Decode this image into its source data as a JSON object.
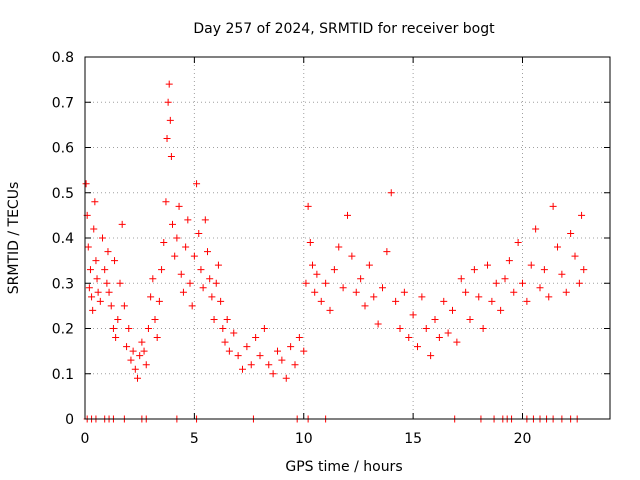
{
  "chart_data": {
    "type": "scatter",
    "title": "Day 257 of 2024, SRMTID for receiver bogt",
    "xlabel": "GPS time / hours",
    "ylabel": "SRMTID / TECUs",
    "xlim": [
      0,
      24
    ],
    "ylim": [
      0,
      0.8
    ],
    "x_ticks": [
      0,
      5,
      10,
      15,
      20
    ],
    "x_tick_labels": [
      "0",
      "5",
      "10",
      "15",
      "20"
    ],
    "y_ticks": [
      0,
      0.1,
      0.2,
      0.3,
      0.4,
      0.5,
      0.6,
      0.7,
      0.8
    ],
    "y_tick_labels": [
      "0",
      "0.1",
      "0.2",
      "0.3",
      "0.4",
      "0.5",
      "0.6",
      "0.7",
      "0.8"
    ],
    "grid": true,
    "marker": "plus",
    "series": [
      {
        "name": "SRMTID",
        "color": "#ff0000",
        "points": [
          [
            0.05,
            0.52
          ],
          [
            0.1,
            0.45
          ],
          [
            0.15,
            0.38
          ],
          [
            0.2,
            0.29
          ],
          [
            0.25,
            0.33
          ],
          [
            0.3,
            0.27
          ],
          [
            0.35,
            0.24
          ],
          [
            0.4,
            0.42
          ],
          [
            0.45,
            0.48
          ],
          [
            0.5,
            0.35
          ],
          [
            0.55,
            0.31
          ],
          [
            0.6,
            0.28
          ],
          [
            0.7,
            0.26
          ],
          [
            0.8,
            0.4
          ],
          [
            0.9,
            0.33
          ],
          [
            1.0,
            0.3
          ],
          [
            1.05,
            0.37
          ],
          [
            1.1,
            0.28
          ],
          [
            1.2,
            0.25
          ],
          [
            1.3,
            0.2
          ],
          [
            1.35,
            0.35
          ],
          [
            1.4,
            0.18
          ],
          [
            1.5,
            0.22
          ],
          [
            1.6,
            0.3
          ],
          [
            1.7,
            0.43
          ],
          [
            1.8,
            0.25
          ],
          [
            1.9,
            0.16
          ],
          [
            2.0,
            0.2
          ],
          [
            2.1,
            0.13
          ],
          [
            2.2,
            0.15
          ],
          [
            2.3,
            0.11
          ],
          [
            2.4,
            0.09
          ],
          [
            2.5,
            0.14
          ],
          [
            2.6,
            0.17
          ],
          [
            2.7,
            0.15
          ],
          [
            2.8,
            0.12
          ],
          [
            2.9,
            0.2
          ],
          [
            3.0,
            0.27
          ],
          [
            3.1,
            0.31
          ],
          [
            3.2,
            0.22
          ],
          [
            3.3,
            0.18
          ],
          [
            3.4,
            0.26
          ],
          [
            3.5,
            0.33
          ],
          [
            3.6,
            0.39
          ],
          [
            3.7,
            0.48
          ],
          [
            3.75,
            0.62
          ],
          [
            3.8,
            0.7
          ],
          [
            3.85,
            0.74
          ],
          [
            3.9,
            0.66
          ],
          [
            3.95,
            0.58
          ],
          [
            4.0,
            0.43
          ],
          [
            4.1,
            0.36
          ],
          [
            4.2,
            0.4
          ],
          [
            4.3,
            0.47
          ],
          [
            4.4,
            0.32
          ],
          [
            4.5,
            0.28
          ],
          [
            4.6,
            0.38
          ],
          [
            4.7,
            0.44
          ],
          [
            4.8,
            0.3
          ],
          [
            4.9,
            0.25
          ],
          [
            5.0,
            0.36
          ],
          [
            5.1,
            0.52
          ],
          [
            5.2,
            0.41
          ],
          [
            5.3,
            0.33
          ],
          [
            5.4,
            0.29
          ],
          [
            5.5,
            0.44
          ],
          [
            5.6,
            0.37
          ],
          [
            5.7,
            0.31
          ],
          [
            5.8,
            0.27
          ],
          [
            5.9,
            0.22
          ],
          [
            6.0,
            0.3
          ],
          [
            6.1,
            0.34
          ],
          [
            6.2,
            0.26
          ],
          [
            6.3,
            0.2
          ],
          [
            6.4,
            0.17
          ],
          [
            6.5,
            0.22
          ],
          [
            6.6,
            0.15
          ],
          [
            6.8,
            0.19
          ],
          [
            7.0,
            0.14
          ],
          [
            7.2,
            0.11
          ],
          [
            7.4,
            0.16
          ],
          [
            7.6,
            0.12
          ],
          [
            7.8,
            0.18
          ],
          [
            8.0,
            0.14
          ],
          [
            8.2,
            0.2
          ],
          [
            8.4,
            0.12
          ],
          [
            8.6,
            0.1
          ],
          [
            8.8,
            0.15
          ],
          [
            9.0,
            0.13
          ],
          [
            9.2,
            0.09
          ],
          [
            9.4,
            0.16
          ],
          [
            9.6,
            0.12
          ],
          [
            9.8,
            0.18
          ],
          [
            10.0,
            0.15
          ],
          [
            10.1,
            0.3
          ],
          [
            10.2,
            0.47
          ],
          [
            10.3,
            0.39
          ],
          [
            10.4,
            0.34
          ],
          [
            10.5,
            0.28
          ],
          [
            10.6,
            0.32
          ],
          [
            10.8,
            0.26
          ],
          [
            11.0,
            0.3
          ],
          [
            11.2,
            0.24
          ],
          [
            11.4,
            0.33
          ],
          [
            11.6,
            0.38
          ],
          [
            11.8,
            0.29
          ],
          [
            12.0,
            0.45
          ],
          [
            12.2,
            0.36
          ],
          [
            12.4,
            0.28
          ],
          [
            12.6,
            0.31
          ],
          [
            12.8,
            0.25
          ],
          [
            13.0,
            0.34
          ],
          [
            13.2,
            0.27
          ],
          [
            13.4,
            0.21
          ],
          [
            13.6,
            0.29
          ],
          [
            13.8,
            0.37
          ],
          [
            14.0,
            0.5
          ],
          [
            14.2,
            0.26
          ],
          [
            14.4,
            0.2
          ],
          [
            14.6,
            0.28
          ],
          [
            14.8,
            0.18
          ],
          [
            15.0,
            0.23
          ],
          [
            15.2,
            0.16
          ],
          [
            15.4,
            0.27
          ],
          [
            15.6,
            0.2
          ],
          [
            15.8,
            0.14
          ],
          [
            16.0,
            0.22
          ],
          [
            16.2,
            0.18
          ],
          [
            16.4,
            0.26
          ],
          [
            16.6,
            0.19
          ],
          [
            16.8,
            0.24
          ],
          [
            17.0,
            0.17
          ],
          [
            17.2,
            0.31
          ],
          [
            17.4,
            0.28
          ],
          [
            17.6,
            0.22
          ],
          [
            17.8,
            0.33
          ],
          [
            18.0,
            0.27
          ],
          [
            18.2,
            0.2
          ],
          [
            18.4,
            0.34
          ],
          [
            18.6,
            0.26
          ],
          [
            18.8,
            0.3
          ],
          [
            19.0,
            0.24
          ],
          [
            19.2,
            0.31
          ],
          [
            19.4,
            0.35
          ],
          [
            19.6,
            0.28
          ],
          [
            19.8,
            0.39
          ],
          [
            20.0,
            0.3
          ],
          [
            20.2,
            0.26
          ],
          [
            20.4,
            0.34
          ],
          [
            20.6,
            0.42
          ],
          [
            20.8,
            0.29
          ],
          [
            21.0,
            0.33
          ],
          [
            21.2,
            0.27
          ],
          [
            21.4,
            0.47
          ],
          [
            21.6,
            0.38
          ],
          [
            21.8,
            0.32
          ],
          [
            22.0,
            0.28
          ],
          [
            22.2,
            0.41
          ],
          [
            22.4,
            0.36
          ],
          [
            22.6,
            0.3
          ],
          [
            22.7,
            0.45
          ],
          [
            22.8,
            0.33
          ],
          [
            0.1,
            0.0
          ],
          [
            0.3,
            0.0
          ],
          [
            0.5,
            0.0
          ],
          [
            0.9,
            0.0
          ],
          [
            1.1,
            0.0
          ],
          [
            1.3,
            0.0
          ],
          [
            1.8,
            0.0
          ],
          [
            2.6,
            0.0
          ],
          [
            2.8,
            0.0
          ],
          [
            4.2,
            0.0
          ],
          [
            5.1,
            0.0
          ],
          [
            7.7,
            0.0
          ],
          [
            9.7,
            0.0
          ],
          [
            10.2,
            0.0
          ],
          [
            11.0,
            0.0
          ],
          [
            16.9,
            0.0
          ],
          [
            18.1,
            0.0
          ],
          [
            18.7,
            0.0
          ],
          [
            19.1,
            0.0
          ],
          [
            19.3,
            0.0
          ],
          [
            19.5,
            0.0
          ],
          [
            20.2,
            0.0
          ],
          [
            20.5,
            0.0
          ],
          [
            20.8,
            0.0
          ],
          [
            21.1,
            0.0
          ],
          [
            21.4,
            0.0
          ],
          [
            21.8,
            0.0
          ],
          [
            22.2,
            0.0
          ],
          [
            22.5,
            0.0
          ]
        ]
      }
    ]
  }
}
